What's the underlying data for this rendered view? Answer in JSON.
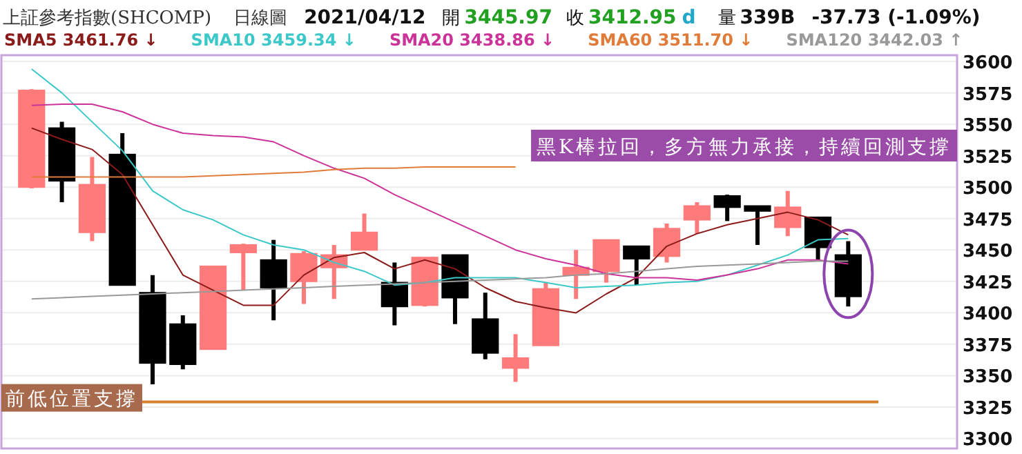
{
  "chart_data": {
    "type": "candlestick",
    "title": "上証參考指數(SHCOMP)",
    "annotations": [
      "日線圖",
      "2021/04/12",
      "開",
      "3445.97",
      "收",
      "3412.95",
      "d",
      "量",
      "339B",
      "-37.73 (-1.09%)",
      "黑K棒拉回，多方無力承接，持續回測支撐"
    ],
    "categories": [
      null,
      null,
      null,
      null,
      null,
      null,
      null,
      null,
      null,
      null,
      null,
      null,
      null,
      null,
      null,
      null,
      null,
      null,
      null,
      null,
      null,
      null,
      null,
      null,
      null,
      null,
      null,
      null
    ],
    "ohlc": [
      [
        3500,
        3578,
        3499,
        3577
      ],
      [
        3547,
        3552,
        3488,
        3505
      ],
      [
        3464,
        3524,
        3457,
        3502
      ],
      [
        3526,
        3543,
        3422,
        3422
      ],
      [
        3416,
        3430,
        3343,
        3360
      ],
      [
        3391,
        3398,
        3355,
        3359
      ],
      [
        3371,
        3437,
        3371,
        3437
      ],
      [
        3448,
        3455,
        3418,
        3454
      ],
      [
        3442,
        3458,
        3394,
        3420
      ],
      [
        3425,
        3449,
        3407,
        3447
      ],
      [
        3436,
        3454,
        3411,
        3446
      ],
      [
        3450,
        3479,
        3450,
        3464
      ],
      [
        3424,
        3440,
        3390,
        3405
      ],
      [
        3406,
        3444,
        3405,
        3444
      ],
      [
        3446,
        3446,
        3391,
        3412
      ],
      [
        3395,
        3416,
        3363,
        3368
      ],
      [
        3356,
        3383,
        3345,
        3364
      ],
      [
        3374,
        3424,
        3374,
        3419
      ],
      [
        3430,
        3450,
        3411,
        3436
      ],
      [
        3433,
        3458,
        3424,
        3458
      ],
      [
        3453,
        3453,
        3422,
        3443
      ],
      [
        3445,
        3471,
        3440,
        3467
      ],
      [
        3474,
        3488,
        3463,
        3485
      ],
      [
        3493,
        3494,
        3473,
        3484
      ],
      [
        3485,
        3485,
        3454,
        3481
      ],
      [
        3468,
        3497,
        3461,
        3484
      ],
      [
        3476,
        3476,
        3442,
        3452
      ],
      [
        3446,
        3457,
        3405,
        3413
      ]
    ],
    "colors": [
      "#ff7a7a",
      "#000000",
      "#ff7a7a",
      "#000000",
      "#000000",
      "#000000",
      "#ff7a7a",
      "#ff7a7a",
      "#000000",
      "#ff7a7a",
      "#ff7a7a",
      "#ff7a7a",
      "#000000",
      "#ff7a7a",
      "#000000",
      "#000000",
      "#ff7a7a",
      "#ff7a7a",
      "#ff7a7a",
      "#ff7a7a",
      "#000000",
      "#ff7a7a",
      "#ff7a7a",
      "#000000",
      "#000000",
      "#ff7a7a",
      "#000000",
      "#000000"
    ],
    "series": [
      {
        "name": "SMA5 3461.76 ↓",
        "type": "line",
        "color": "#8b1a1a",
        "values": [
          3547,
          3538,
          3530,
          3510,
          3470,
          3430,
          3418,
          3406,
          3406,
          3430,
          3444,
          3448,
          3435,
          3442,
          3435,
          3420,
          3409,
          3404,
          3400,
          3415,
          3428,
          3453,
          3463,
          3470,
          3475,
          3480,
          3474,
          3462
        ]
      },
      {
        "name": "SMA10 3459.34 ↓",
        "type": "line",
        "color": "#3cc8c8",
        "values": [
          3594,
          3575,
          3552,
          3529,
          3497,
          3482,
          3474,
          3462,
          3454,
          3450,
          3440,
          3433,
          3422,
          3424,
          3428,
          3428,
          3428,
          3424,
          3420,
          3421,
          3422,
          3424,
          3425,
          3430,
          3438,
          3446,
          3458,
          3459
        ]
      },
      {
        "name": "SMA20 3438.86 ↓",
        "type": "line",
        "color": "#cc3399",
        "values": [
          3565,
          3566,
          3566,
          3560,
          3550,
          3543,
          3541,
          3540,
          3536,
          3525,
          3515,
          3507,
          3494,
          3483,
          3472,
          3461,
          3450,
          3443,
          3438,
          3431,
          3428,
          3428,
          3426,
          3430,
          3435,
          3442,
          3442,
          3439
        ]
      },
      {
        "name": "SMA60 3511.70 ↓",
        "type": "line",
        "color": "#e07b39",
        "values": [
          3508,
          3508,
          3508,
          3508,
          3508,
          3508,
          3509,
          3510,
          3511,
          3512,
          3514,
          3515,
          3515,
          3516,
          3516,
          3516,
          3516,
          null,
          null,
          null,
          null,
          null,
          null,
          null,
          null,
          null,
          null,
          null
        ]
      },
      {
        "name": "SMA120 3442.03 ↑",
        "type": "line",
        "color": "#999999",
        "values": [
          3411,
          3412,
          3413,
          3414,
          3415,
          3416,
          3417,
          3418,
          3419,
          3420,
          3421,
          3422,
          3423,
          3424,
          3425,
          3426,
          3427,
          3428,
          3430,
          3431,
          3433,
          3435,
          3437,
          3438,
          3439,
          3440,
          3441,
          3441
        ]
      }
    ],
    "ref_lines": [
      {
        "axis": "y",
        "value": 3329,
        "label": "前低位置支撐",
        "color": "#d9822b"
      }
    ],
    "ylim": [
      3292,
      3605
    ],
    "yticks": [
      3300,
      3325,
      3350,
      3375,
      3400,
      3425,
      3450,
      3475,
      3500,
      3525,
      3550,
      3575,
      3600
    ],
    "grid": "y",
    "tick_labels": "y"
  }
}
